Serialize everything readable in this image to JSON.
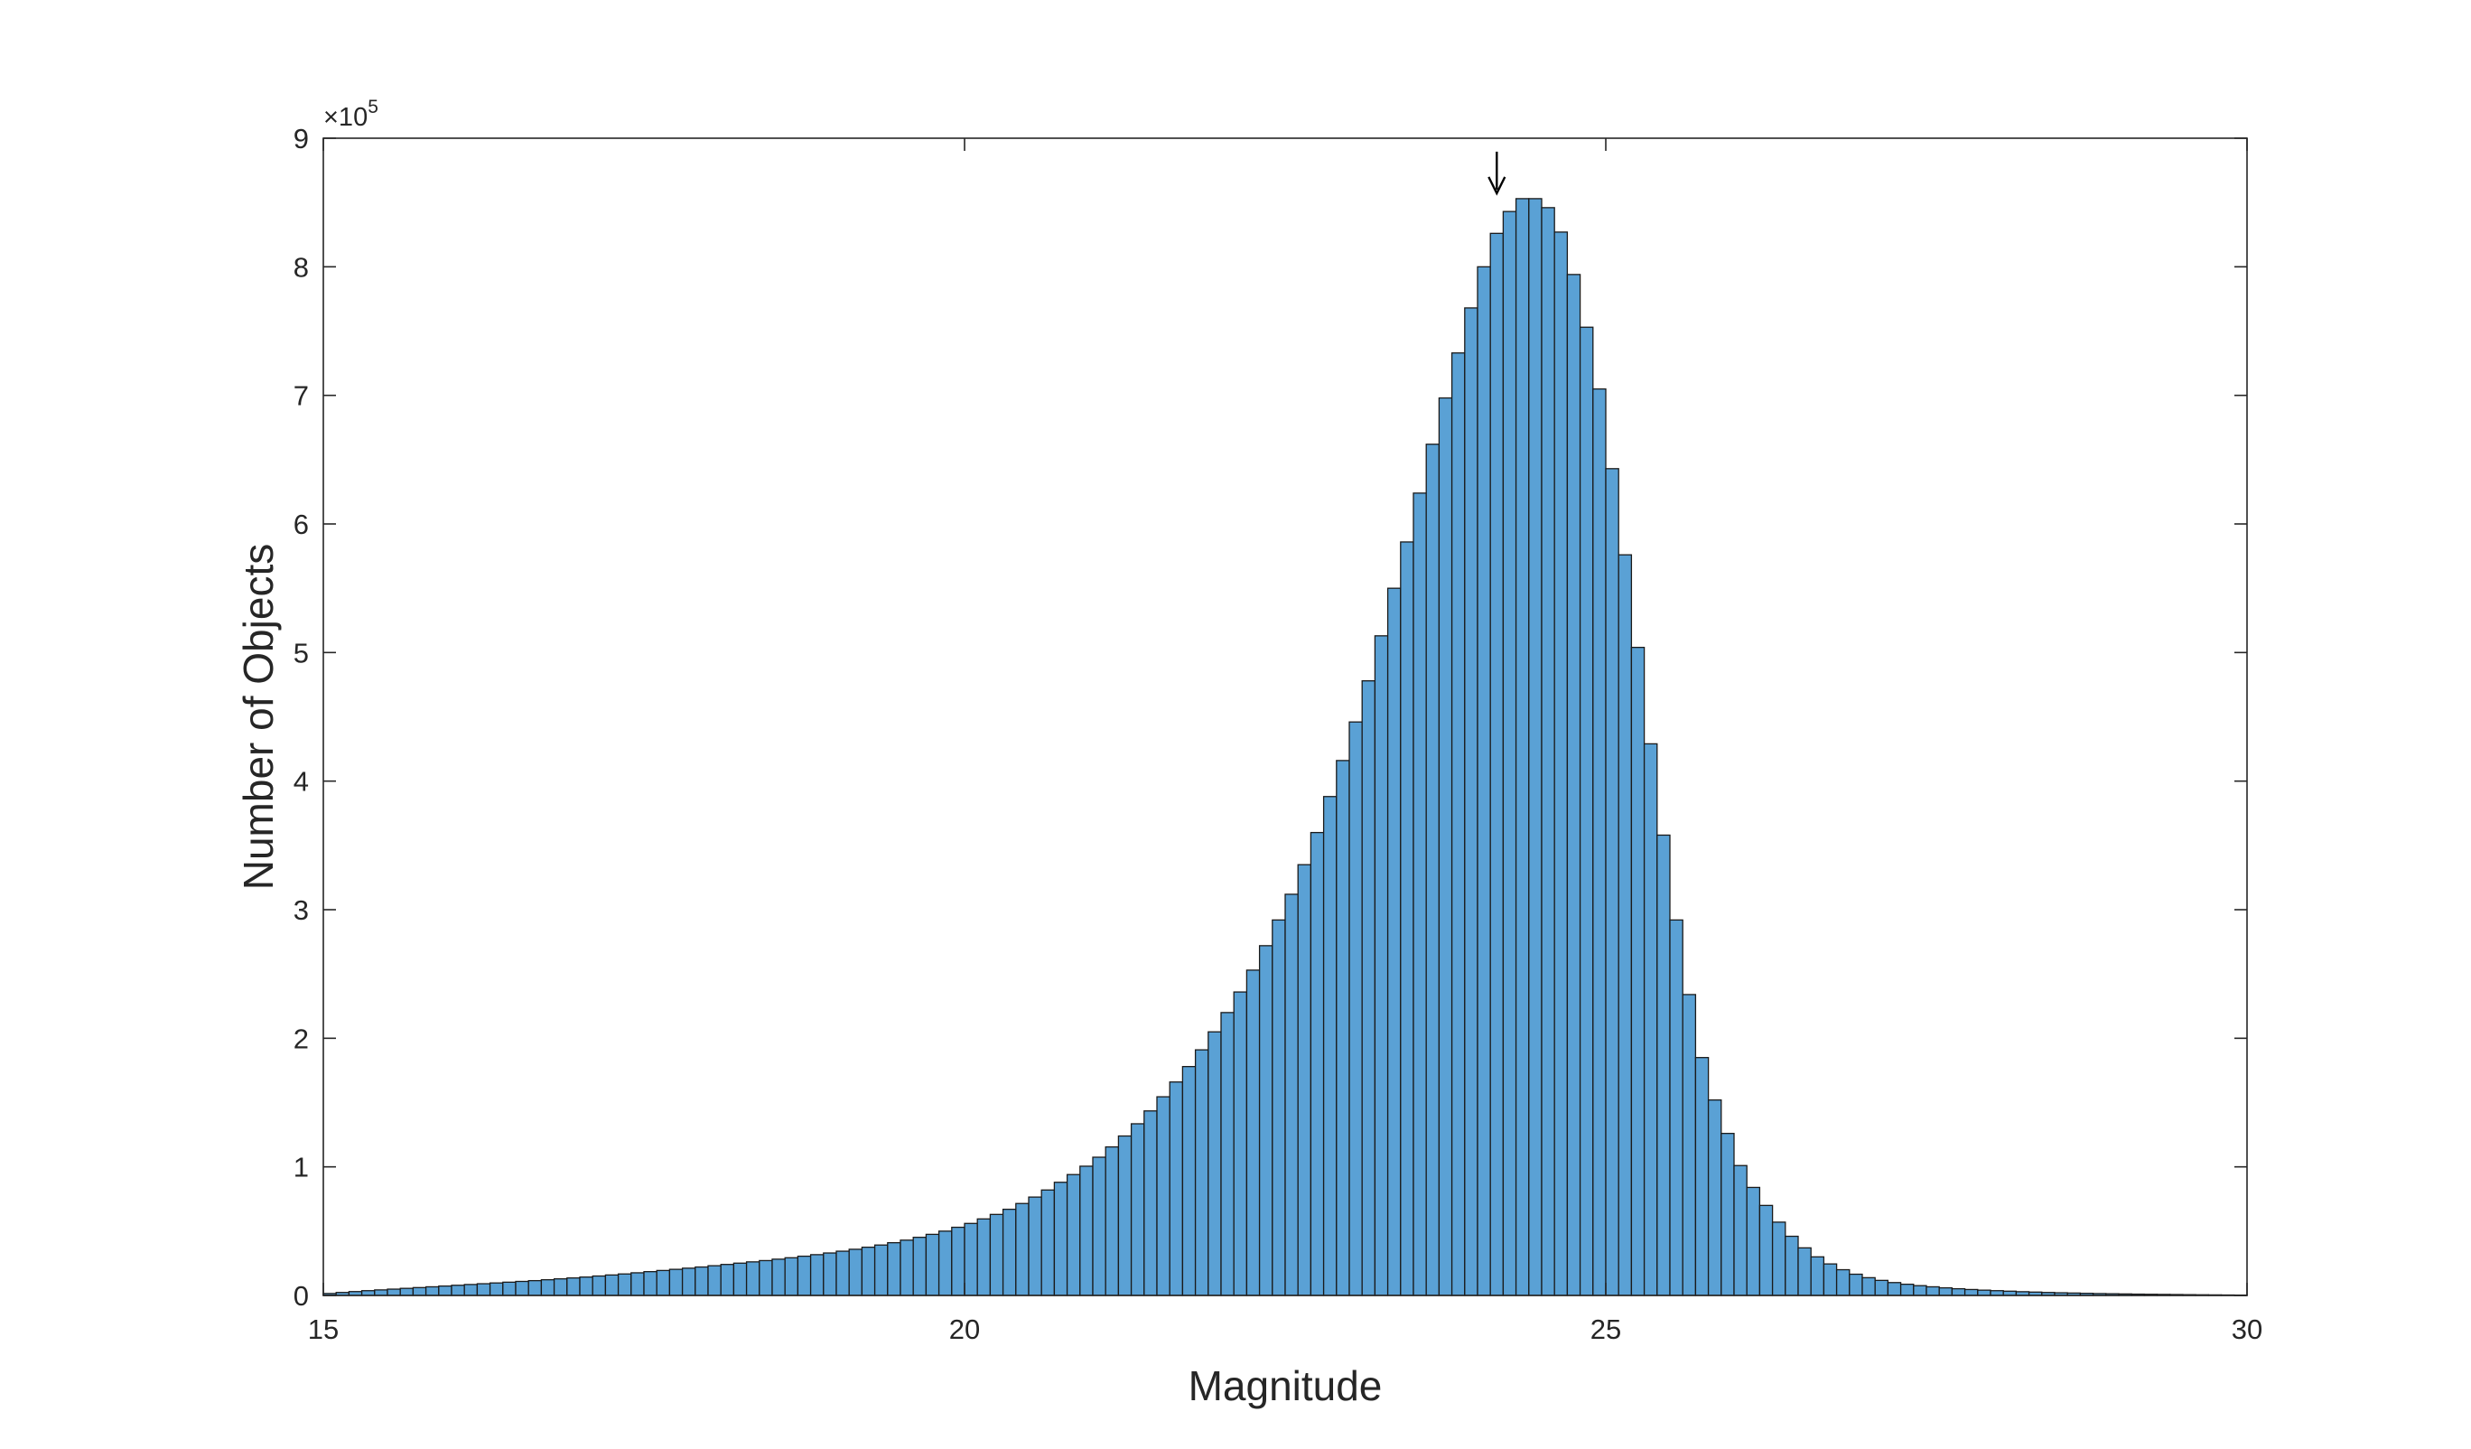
{
  "chart_data": {
    "type": "bar",
    "title": "",
    "xlabel": "Magnitude",
    "ylabel": "Number of Objects",
    "xlim": [
      15,
      30
    ],
    "ylim": [
      0,
      900000
    ],
    "y_exponent_label": "×10",
    "y_exponent_power": "5",
    "x_ticks": [
      "15",
      "20",
      "25",
      "30"
    ],
    "y_ticks": [
      "0",
      "1",
      "2",
      "3",
      "4",
      "5",
      "6",
      "7",
      "8",
      "9"
    ],
    "bin_width": 0.1,
    "bin_start": 15,
    "series": [
      {
        "values": [
          1500,
          2300,
          3000,
          3700,
          4300,
          4900,
          5500,
          6100,
          6700,
          7300,
          7900,
          8500,
          9100,
          9700,
          10300,
          10900,
          11500,
          12200,
          12900,
          13600,
          14300,
          15100,
          15900,
          16700,
          17600,
          18500,
          19400,
          20300,
          21200,
          22100,
          23100,
          24100,
          25100,
          26100,
          27100,
          28200,
          29300,
          30500,
          31700,
          33000,
          34400,
          35900,
          37500,
          39200,
          41000,
          43000,
          45200,
          47500,
          50000,
          53000,
          56000,
          59500,
          63000,
          67000,
          71500,
          76500,
          82000,
          88000,
          94000,
          100500,
          107500,
          115500,
          124000,
          133500,
          143500,
          154500,
          166000,
          178000,
          191000,
          205000,
          220000,
          236000,
          253000,
          272000,
          292000,
          312000,
          335000,
          360000,
          388000,
          416000,
          446000,
          478000,
          513000,
          550000,
          586000,
          624000,
          662000,
          698000,
          733000,
          768000,
          800000,
          826000,
          843000,
          853000,
          853000,
          846000,
          827000,
          794000,
          753000,
          705000,
          643000,
          576000,
          504000,
          429000,
          358000,
          292000,
          234000,
          185000,
          152000,
          126000,
          101000,
          84000,
          70000,
          57000,
          46000,
          37000,
          30000,
          24500,
          20000,
          16500,
          13800,
          11700,
          10000,
          8700,
          7600,
          6700,
          5900,
          5200,
          4600,
          4100,
          3700,
          3300,
          2900,
          2600,
          2300,
          2050,
          1850,
          1650,
          1450,
          1300,
          1150,
          1000,
          900,
          800,
          700,
          600,
          500,
          420,
          340,
          260
        ]
      }
    ],
    "annotation": {
      "type": "arrow",
      "x": 24.15,
      "description": "downward arrow marking peak"
    },
    "grid": false,
    "colors": {
      "bar_fill": "#5aa1d5",
      "bar_edge": "#1a1a1a",
      "axis": "#262626"
    }
  }
}
